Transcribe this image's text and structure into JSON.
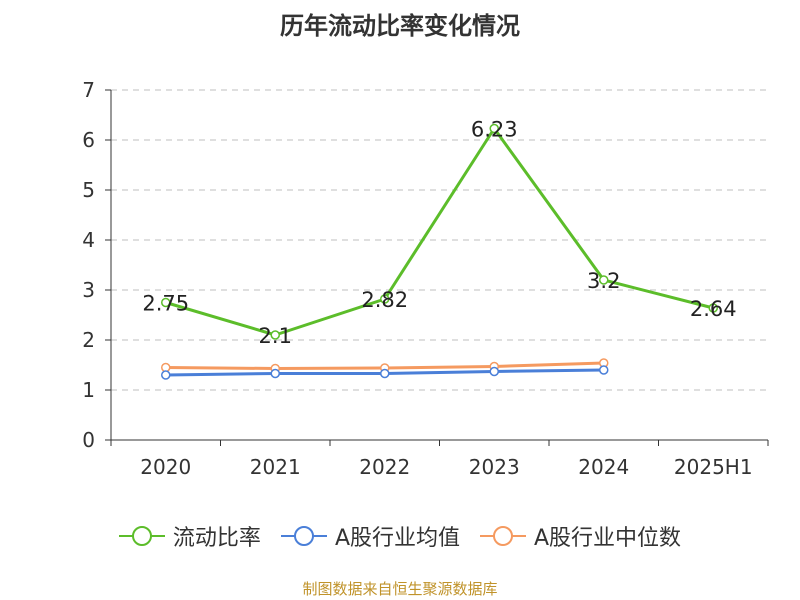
{
  "chart_data": {
    "type": "line",
    "title": "历年流动比率变化情况",
    "categories": [
      "2020",
      "2021",
      "2022",
      "2023",
      "2024",
      "2025H1"
    ],
    "ylim": [
      0,
      7
    ],
    "yticks": [
      0,
      1,
      2,
      3,
      4,
      5,
      6,
      7
    ],
    "grid": true,
    "legend_position": "bottom",
    "series": [
      {
        "name": "流动比率",
        "color": "#5cbd2a",
        "values": [
          2.75,
          2.1,
          2.82,
          6.23,
          3.2,
          2.64
        ],
        "labels": [
          "2.75",
          "2.1",
          "2.82",
          "6.23",
          "3.2",
          "2.64"
        ],
        "show_labels": true
      },
      {
        "name": "A股行业均值",
        "color": "#4a7fd8",
        "values": [
          1.3,
          1.33,
          1.33,
          1.37,
          1.4,
          null
        ],
        "show_labels": false
      },
      {
        "name": "A股行业中位数",
        "color": "#f59a60",
        "values": [
          1.45,
          1.43,
          1.44,
          1.47,
          1.54,
          null
        ],
        "show_labels": false
      }
    ]
  },
  "footer": {
    "source": "制图数据来自恒生聚源数据库"
  }
}
